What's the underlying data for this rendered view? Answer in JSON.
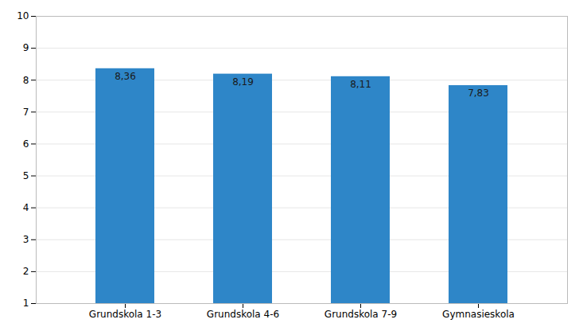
{
  "chart_data": {
    "type": "bar",
    "categories": [
      "Grundskola 1-3",
      "Grundskola 4-6",
      "Grundskola 7-9",
      "Gymnasieskola"
    ],
    "values": [
      8.36,
      8.19,
      8.11,
      7.83
    ],
    "value_labels": [
      "8,36",
      "8,19",
      "8,11",
      "7,83"
    ],
    "data_labels": true,
    "color": "#2E86C8",
    "ylim": [
      1,
      10
    ],
    "yticks": [
      1,
      2,
      3,
      4,
      5,
      6,
      7,
      8,
      9,
      10
    ],
    "grid": true
  }
}
